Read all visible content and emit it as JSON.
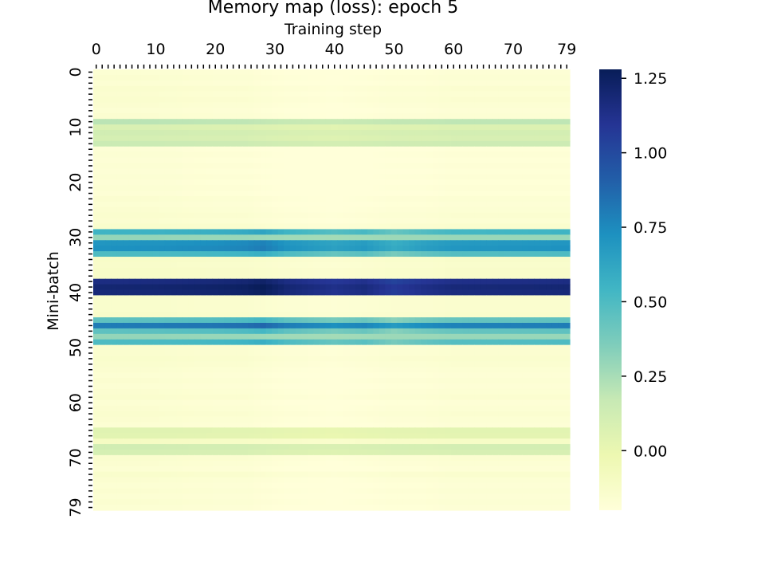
{
  "chart_data": {
    "type": "heatmap",
    "title": "Memory map (loss): epoch 5",
    "xlabel": "Training step",
    "ylabel": "Mini-batch",
    "x_ticks": [
      "0",
      "10",
      "20",
      "30",
      "40",
      "50",
      "60",
      "70",
      "79"
    ],
    "y_ticks": [
      "0",
      "10",
      "20",
      "30",
      "40",
      "50",
      "60",
      "70",
      "79"
    ],
    "xlim": [
      0,
      79
    ],
    "ylim": [
      0,
      79
    ],
    "rows": 80,
    "cols": 80,
    "x_axis_position": "top",
    "colormap": "YlGnBu",
    "colorbar": {
      "vmin": -0.2,
      "vmax": 1.28,
      "ticks": [
        "0.00",
        "0.25",
        "0.50",
        "0.75",
        "1.00",
        "1.25"
      ],
      "placement": "right"
    },
    "row_base_loss": [
      -0.17,
      -0.16,
      -0.17,
      -0.15,
      -0.16,
      -0.15,
      -0.16,
      -0.17,
      -0.16,
      0.2,
      0.08,
      0.12,
      0.1,
      0.15,
      -0.18,
      -0.17,
      -0.18,
      -0.17,
      -0.18,
      -0.17,
      -0.18,
      -0.17,
      -0.18,
      -0.16,
      -0.17,
      -0.16,
      -0.15,
      -0.16,
      -0.14,
      0.55,
      0.3,
      0.7,
      0.72,
      0.5,
      -0.12,
      -0.13,
      -0.12,
      -0.12,
      1.15,
      1.2,
      1.18,
      -0.14,
      -0.14,
      -0.14,
      -0.13,
      0.45,
      0.8,
      0.45,
      0.3,
      0.5,
      -0.15,
      -0.15,
      -0.14,
      -0.15,
      -0.16,
      -0.17,
      -0.16,
      -0.17,
      -0.16,
      -0.15,
      -0.17,
      -0.16,
      -0.15,
      -0.16,
      -0.17,
      0.05,
      0.04,
      -0.1,
      0.12,
      0.1,
      -0.15,
      -0.16,
      -0.17,
      -0.14,
      -0.16,
      -0.17,
      -0.16,
      -0.17,
      -0.16,
      -0.17
    ],
    "step_pattern": {
      "steps": [
        0,
        10,
        20,
        25,
        28,
        32,
        40,
        45,
        50,
        55,
        60,
        70,
        79
      ],
      "high_rows_delta": [
        0.0,
        0.01,
        0.03,
        0.05,
        0.08,
        0.0,
        -0.07,
        -0.03,
        -0.12,
        -0.06,
        -0.02,
        -0.01,
        0.0
      ],
      "low_rows_delta": [
        0.0,
        0.0,
        -0.01,
        -0.01,
        -0.02,
        -0.03,
        -0.04,
        -0.03,
        -0.02,
        -0.02,
        -0.01,
        -0.01,
        -0.01
      ]
    }
  }
}
